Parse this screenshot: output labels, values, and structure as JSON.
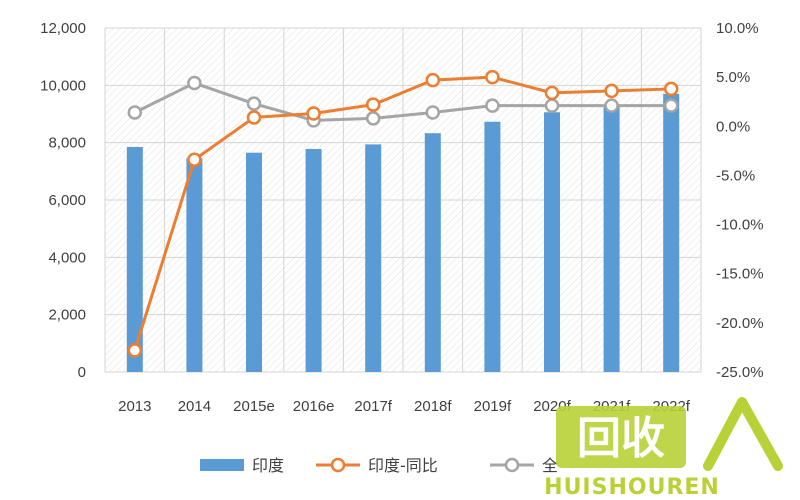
{
  "chart_data": {
    "type": "bar",
    "categories": [
      "2013",
      "2014",
      "2015e",
      "2016e",
      "2017f",
      "2018f",
      "2019f",
      "2020f",
      "2021f",
      "2022f"
    ],
    "series": [
      {
        "name": "印度",
        "type": "bar",
        "axis": "left",
        "color": "#5b9bd5",
        "values": [
          7850,
          7450,
          7650,
          7780,
          7940,
          8330,
          8730,
          9060,
          9330,
          9700
        ]
      },
      {
        "name": "印度-同比",
        "type": "line",
        "axis": "right",
        "color": "#ed7d31",
        "values": [
          -22.8,
          -3.4,
          0.9,
          1.3,
          2.2,
          4.7,
          5.0,
          3.4,
          3.6,
          3.8
        ]
      },
      {
        "name": "全",
        "type": "line",
        "axis": "right",
        "color": "#a5a5a5",
        "values": [
          1.4,
          4.4,
          2.3,
          0.6,
          0.8,
          1.4,
          2.1,
          2.1,
          2.1,
          2.1
        ]
      }
    ],
    "y_left": {
      "min": 0,
      "max": 12000,
      "step": 2000,
      "tick_labels": [
        "0",
        "2,000",
        "4,000",
        "6,000",
        "8,000",
        "10,000",
        "12,000"
      ]
    },
    "y_right": {
      "min": -25,
      "max": 10,
      "step": 5,
      "tick_labels": [
        "-25.0%",
        "-20.0%",
        "-15.0%",
        "-10.0%",
        "-5.0%",
        "0.0%",
        "5.0%",
        "10.0%"
      ]
    },
    "grid": true,
    "plot_background": "hatched",
    "legend_position": "bottom"
  },
  "watermark": {
    "logo_text": "回收",
    "brand_text": "HUISHOUREN",
    "color": "#b8d136"
  }
}
